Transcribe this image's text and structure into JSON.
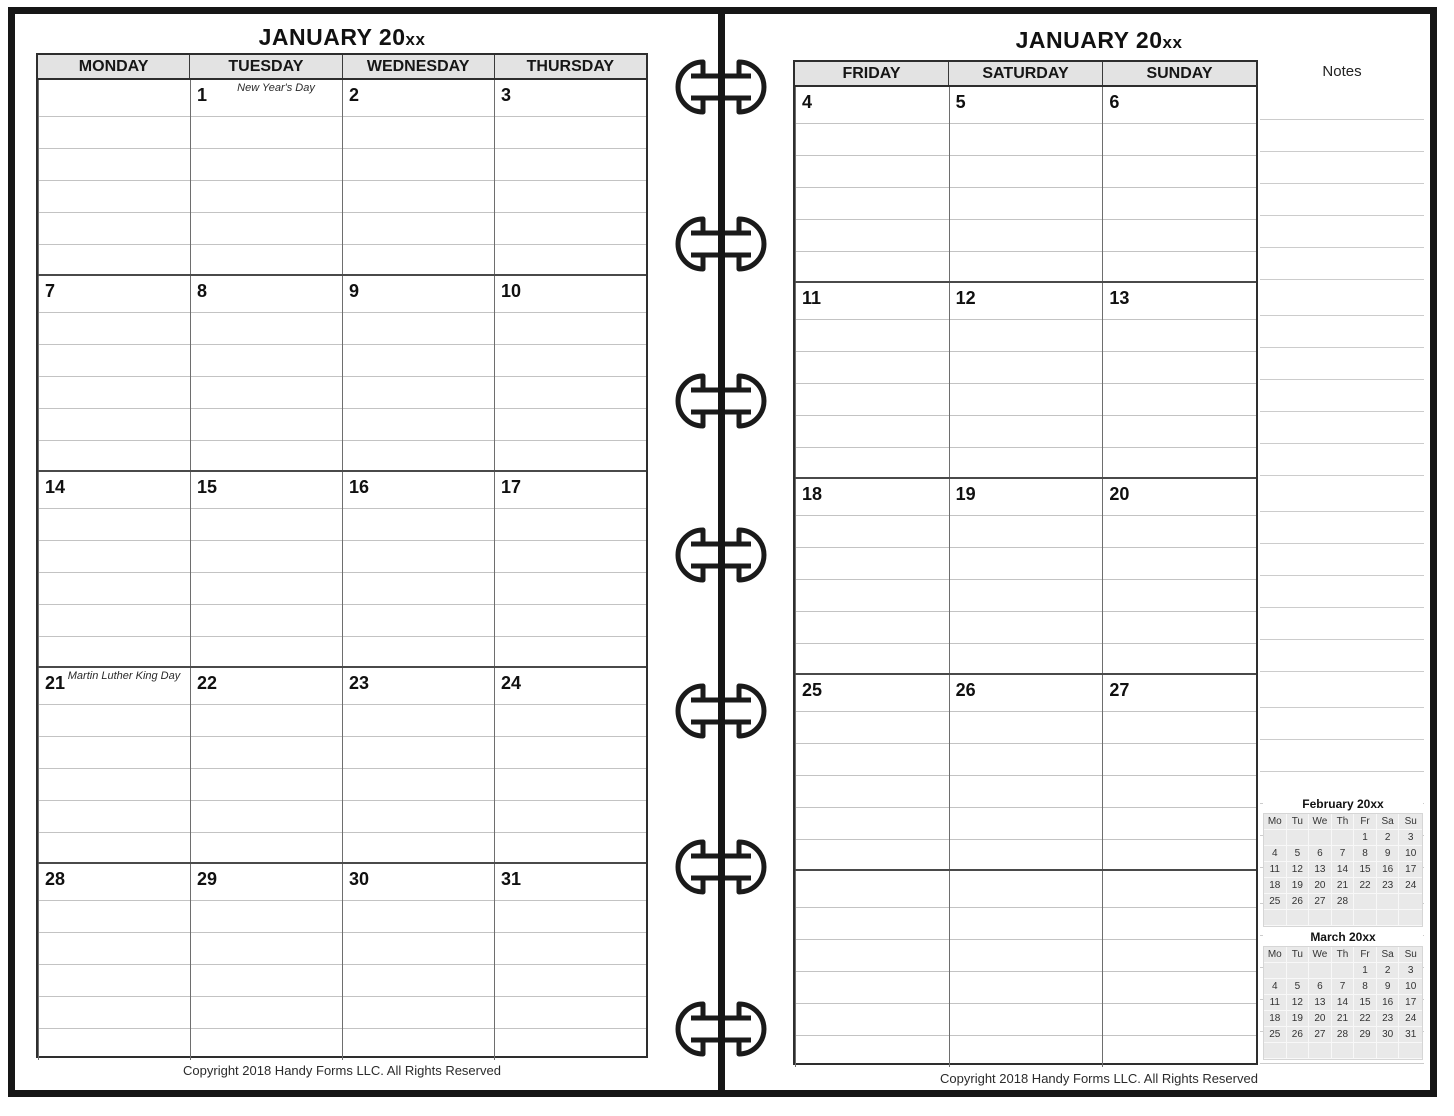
{
  "left_page": {
    "title": {
      "main": "JANUARY 20",
      "suffix": "xx"
    },
    "day_headers": [
      "MONDAY",
      "TUESDAY",
      "WEDNESDAY",
      "THURSDAY"
    ],
    "weeks": [
      [
        {
          "date": ""
        },
        {
          "date": "1",
          "holiday": "New Year's Day"
        },
        {
          "date": "2"
        },
        {
          "date": "3"
        }
      ],
      [
        {
          "date": "7"
        },
        {
          "date": "8"
        },
        {
          "date": "9"
        },
        {
          "date": "10"
        }
      ],
      [
        {
          "date": "14"
        },
        {
          "date": "15"
        },
        {
          "date": "16"
        },
        {
          "date": "17"
        }
      ],
      [
        {
          "date": "21",
          "holiday": "Martin Luther King Day"
        },
        {
          "date": "22"
        },
        {
          "date": "23"
        },
        {
          "date": "24"
        }
      ],
      [
        {
          "date": "28"
        },
        {
          "date": "29"
        },
        {
          "date": "30"
        },
        {
          "date": "31"
        }
      ]
    ],
    "copyright": "Copyright 2018 Handy Forms LLC. All Rights Reserved"
  },
  "right_page": {
    "title": {
      "main": "JANUARY 20",
      "suffix": "xx"
    },
    "day_headers": [
      "FRIDAY",
      "SATURDAY",
      "SUNDAY"
    ],
    "notes_label": "Notes",
    "weeks": [
      [
        {
          "date": "4"
        },
        {
          "date": "5"
        },
        {
          "date": "6"
        }
      ],
      [
        {
          "date": "11"
        },
        {
          "date": "12"
        },
        {
          "date": "13"
        }
      ],
      [
        {
          "date": "18"
        },
        {
          "date": "19"
        },
        {
          "date": "20"
        }
      ],
      [
        {
          "date": "25"
        },
        {
          "date": "26"
        },
        {
          "date": "27"
        }
      ],
      [
        {
          "date": ""
        },
        {
          "date": ""
        },
        {
          "date": ""
        }
      ]
    ],
    "copyright": "Copyright 2018 Handy Forms LLC. All Rights Reserved",
    "mini_calendars": [
      {
        "title": "February 20xx",
        "day_headers": [
          "Mo",
          "Tu",
          "We",
          "Th",
          "Fr",
          "Sa",
          "Su"
        ],
        "rows": [
          [
            "",
            "",
            "",
            "",
            "1",
            "2",
            "3"
          ],
          [
            "4",
            "5",
            "6",
            "7",
            "8",
            "9",
            "10"
          ],
          [
            "11",
            "12",
            "13",
            "14",
            "15",
            "16",
            "17"
          ],
          [
            "18",
            "19",
            "20",
            "21",
            "22",
            "23",
            "24"
          ],
          [
            "25",
            "26",
            "27",
            "28",
            "",
            "",
            ""
          ],
          [
            "",
            "",
            "",
            "",
            "",
            "",
            ""
          ]
        ]
      },
      {
        "title": "March 20xx",
        "day_headers": [
          "Mo",
          "Tu",
          "We",
          "Th",
          "Fr",
          "Sa",
          "Su"
        ],
        "rows": [
          [
            "",
            "",
            "",
            "",
            "1",
            "2",
            "3"
          ],
          [
            "4",
            "5",
            "6",
            "7",
            "8",
            "9",
            "10"
          ],
          [
            "11",
            "12",
            "13",
            "14",
            "15",
            "16",
            "17"
          ],
          [
            "18",
            "19",
            "20",
            "21",
            "22",
            "23",
            "24"
          ],
          [
            "25",
            "26",
            "27",
            "28",
            "29",
            "30",
            "31"
          ],
          [
            "",
            "",
            "",
            "",
            "",
            "",
            ""
          ]
        ]
      }
    ]
  },
  "colors": {
    "frame": "#161616",
    "header_bg": "#e3e3e3",
    "dark_border": "#2e2e2e",
    "week_border": "#4a4a4a",
    "writing_line": "#c3c3c3",
    "minical_cell_bg": "#e9e9e9"
  }
}
